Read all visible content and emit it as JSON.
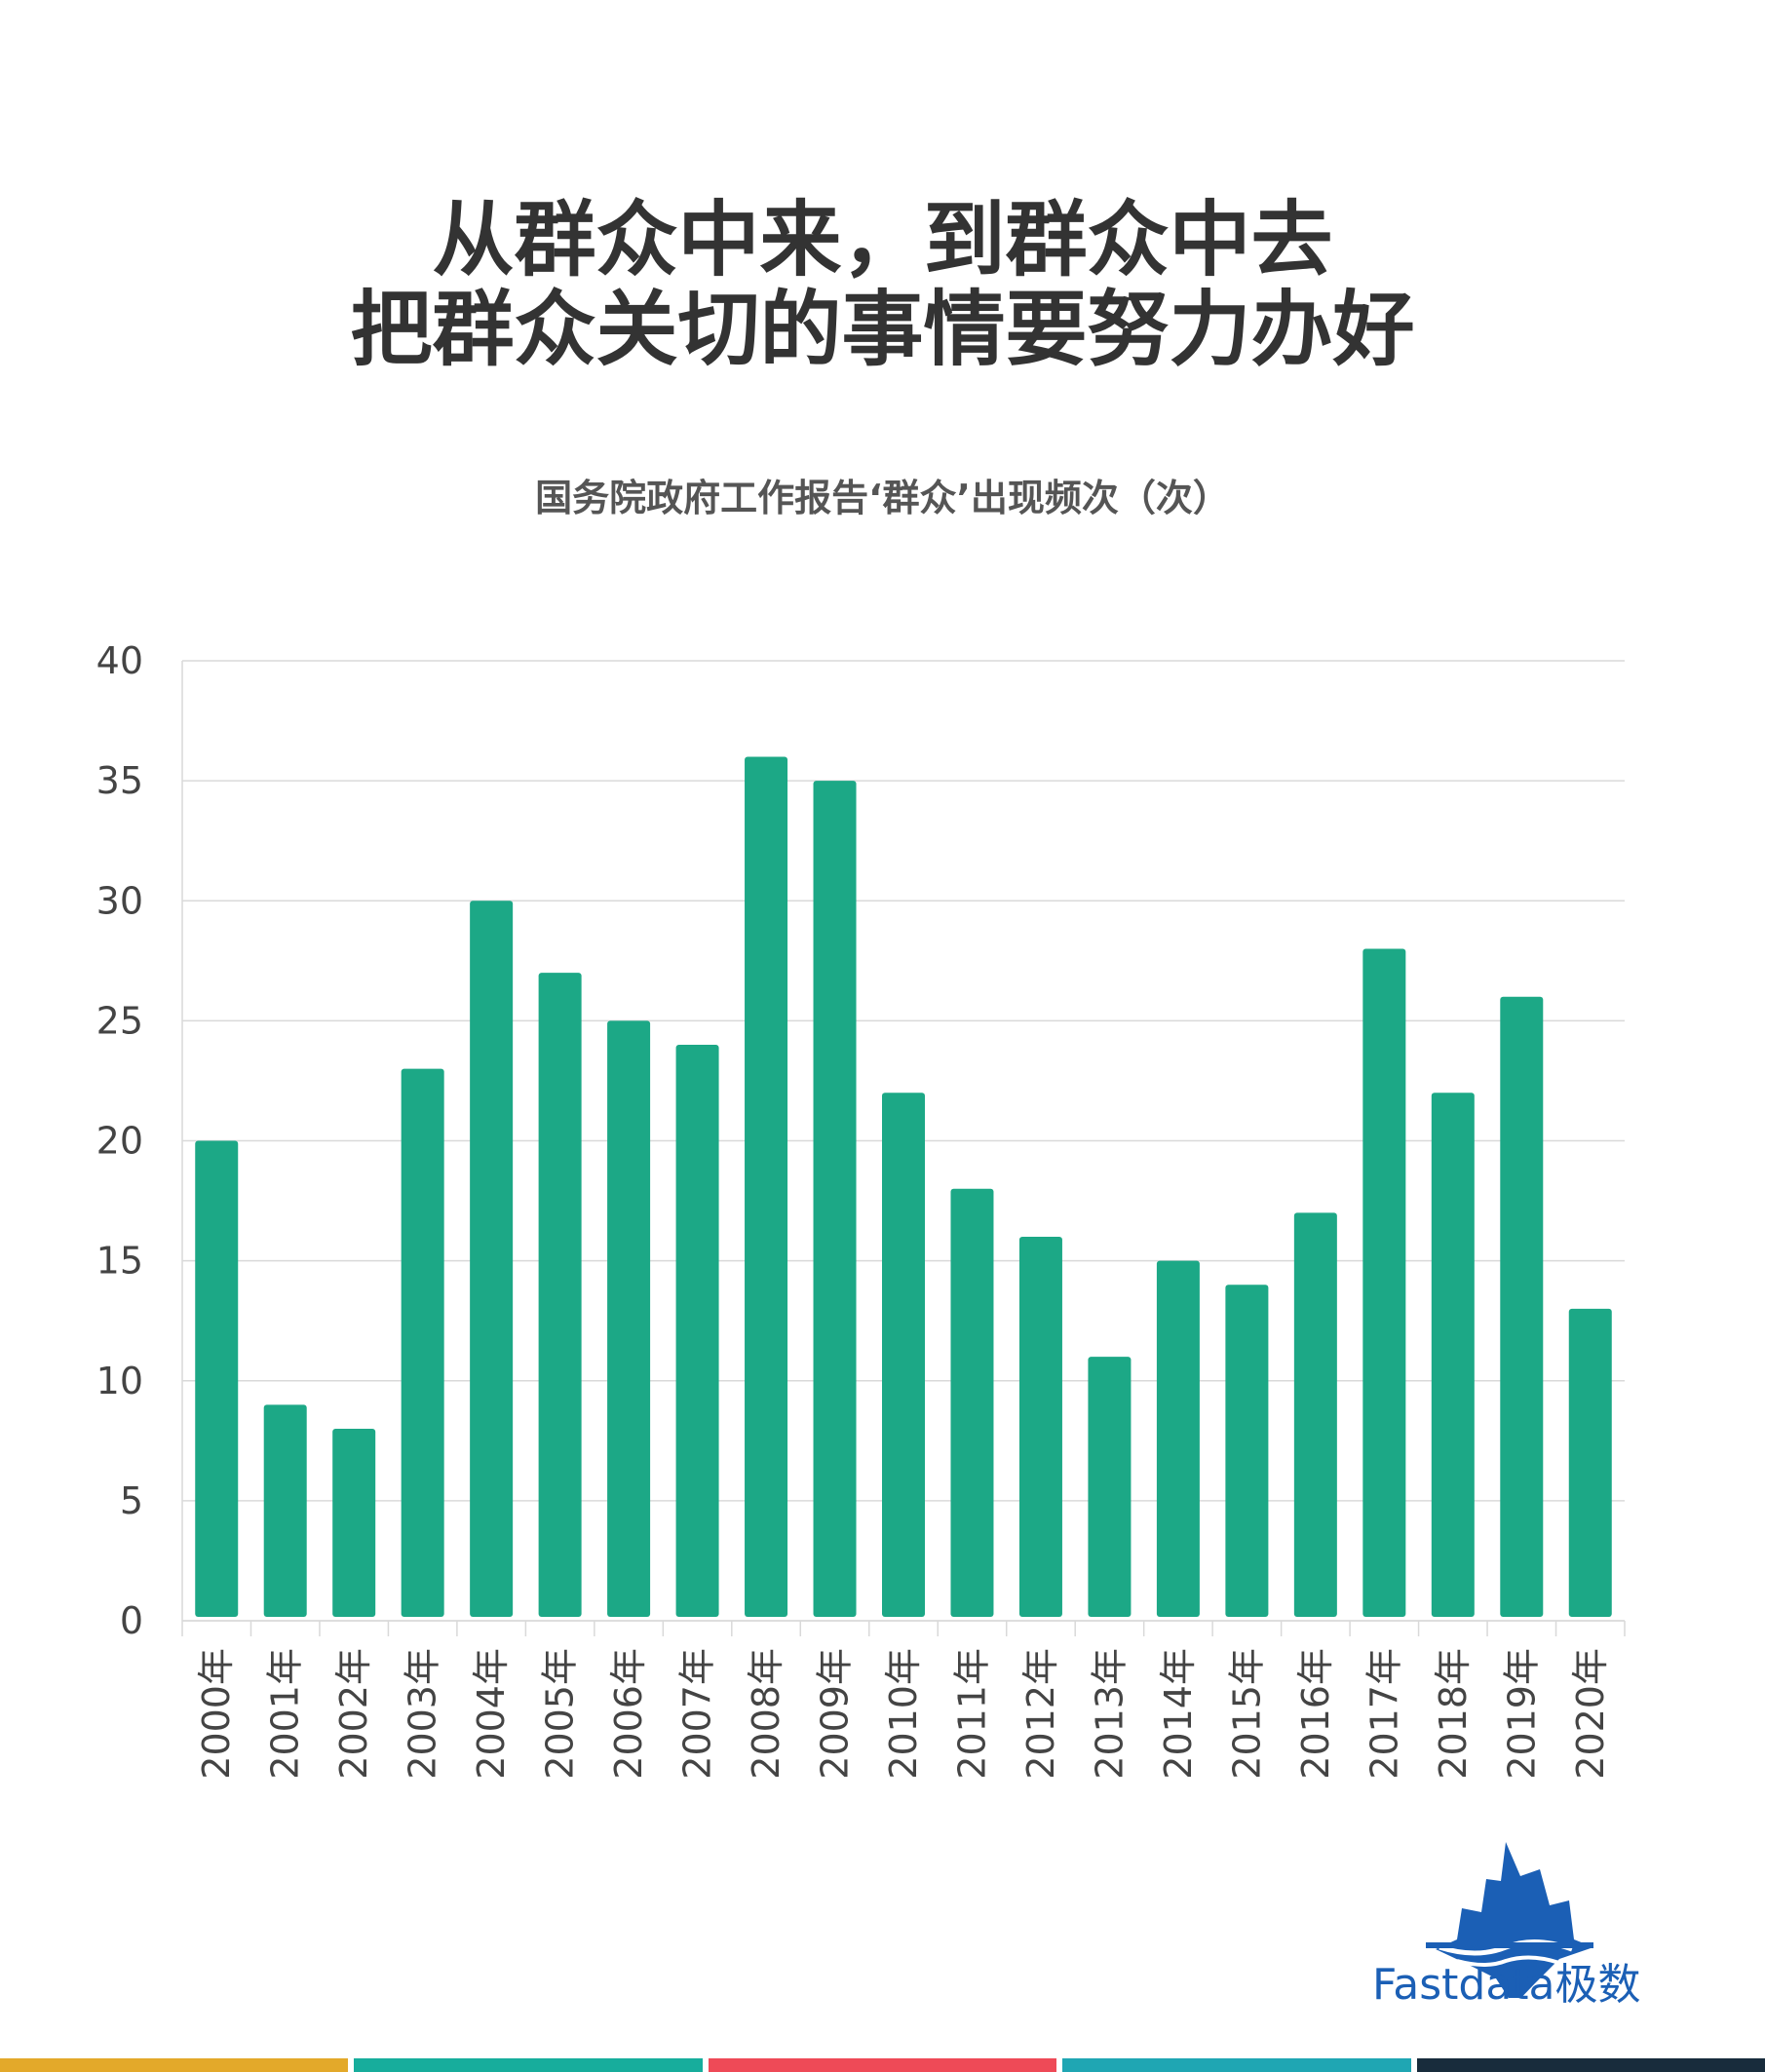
{
  "title_lines": [
    "从群众中来，到群众中去",
    "把群众关切的事情要努力办好"
  ],
  "brand": {
    "name": "Fastdata极数",
    "color": "#1b5fb5"
  },
  "colors": {
    "bar": "#1ca886",
    "grid": "#d9d9d9",
    "axis_text": "#444444"
  },
  "footer_colors": [
    "#e3a92a",
    "#17ad9c",
    "#ee4a57",
    "#1fa6b3",
    "#182c3c"
  ],
  "chart_data": {
    "type": "bar",
    "title": "国务院政府工作报告‘群众’出现频次（次）",
    "categories": [
      "2000年",
      "2001年",
      "2002年",
      "2003年",
      "2004年",
      "2005年",
      "2006年",
      "2007年",
      "2008年",
      "2009年",
      "2010年",
      "2011年",
      "2012年",
      "2013年",
      "2014年",
      "2015年",
      "2016年",
      "2017年",
      "2018年",
      "2019年",
      "2020年"
    ],
    "values": [
      20,
      9,
      8,
      23,
      30,
      27,
      25,
      24,
      36,
      35,
      22,
      18,
      16,
      11,
      15,
      14,
      17,
      28,
      22,
      26,
      13
    ],
    "ylim": [
      0,
      40
    ],
    "yticks": [
      0,
      5,
      10,
      15,
      20,
      25,
      30,
      35,
      40
    ],
    "grid": true,
    "xlabel": "",
    "ylabel": ""
  }
}
